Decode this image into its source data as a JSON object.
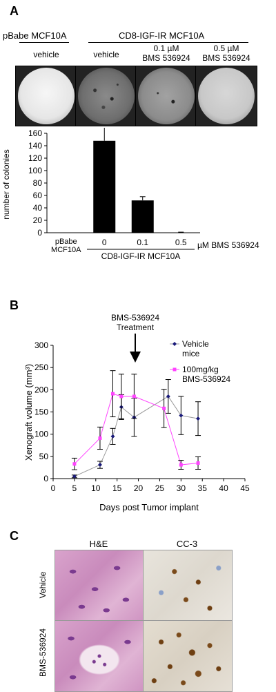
{
  "panels": {
    "a": {
      "letter": "A",
      "group_left": "pBabe MCF10A",
      "group_right": "CD8-IGF-IR MCF10A",
      "dish_labels": [
        {
          "line1": "vehicle",
          "line2": ""
        },
        {
          "line1": "vehicle",
          "line2": ""
        },
        {
          "line1": "0.1 µM",
          "line2": "BMS 536924"
        },
        {
          "line1": "0.5 µM",
          "line2": "BMS 536924"
        }
      ]
    },
    "b": {
      "letter": "B",
      "annotation_line1": "BMS-536924",
      "annotation_line2": "Treatment"
    },
    "c": {
      "letter": "C",
      "col_headers": [
        "H&E",
        "CC-3"
      ],
      "row_labels": [
        "Vehicle",
        "BMS-536924"
      ]
    }
  },
  "chart_data": [
    {
      "type": "bar",
      "categories": [
        "pBabe MCF10A",
        "0",
        "0.1",
        "0.5"
      ],
      "category_lines": [
        [
          "pBabe",
          "MCF10A"
        ],
        [
          "0"
        ],
        [
          "0.1"
        ],
        [
          "0.5"
        ]
      ],
      "values": [
        0,
        148,
        52,
        0
      ],
      "errors": [
        0,
        22,
        6,
        1
      ],
      "ylabel": "number of colonies",
      "ylim": [
        0,
        160
      ],
      "yticks": [
        0,
        20,
        40,
        60,
        80,
        100,
        120,
        140,
        160
      ],
      "x_unit_label": "µM BMS 536924",
      "group_label": "CD8-IGF-IR MCF10A",
      "color": "#000000"
    },
    {
      "type": "line",
      "xlabel": "Days post Tumor implant",
      "ylabel": "Xenograft volume (mm³)",
      "xlim": [
        0,
        45
      ],
      "ylim": [
        0,
        300
      ],
      "xticks": [
        0,
        5,
        10,
        15,
        20,
        25,
        30,
        35,
        40,
        45
      ],
      "yticks": [
        0,
        50,
        100,
        150,
        200,
        250,
        300
      ],
      "treatment_day": 16,
      "series": [
        {
          "name": "Vehicle mice",
          "color": "#1a1a7a",
          "x": [
            5,
            11,
            14,
            16,
            19,
            27,
            30,
            34
          ],
          "y": [
            5,
            31,
            95,
            161,
            138,
            185,
            142,
            135
          ],
          "err": [
            3,
            8,
            18,
            28,
            43,
            38,
            43,
            38
          ]
        },
        {
          "name": "100mg/kg BMS-536924",
          "color": "#ff44ff",
          "x": [
            5,
            11,
            14,
            16,
            19,
            26,
            30,
            34
          ],
          "y": [
            33,
            91,
            191,
            185,
            185,
            158,
            31,
            35
          ],
          "err": [
            13,
            25,
            52,
            50,
            50,
            43,
            10,
            14
          ]
        }
      ]
    }
  ]
}
